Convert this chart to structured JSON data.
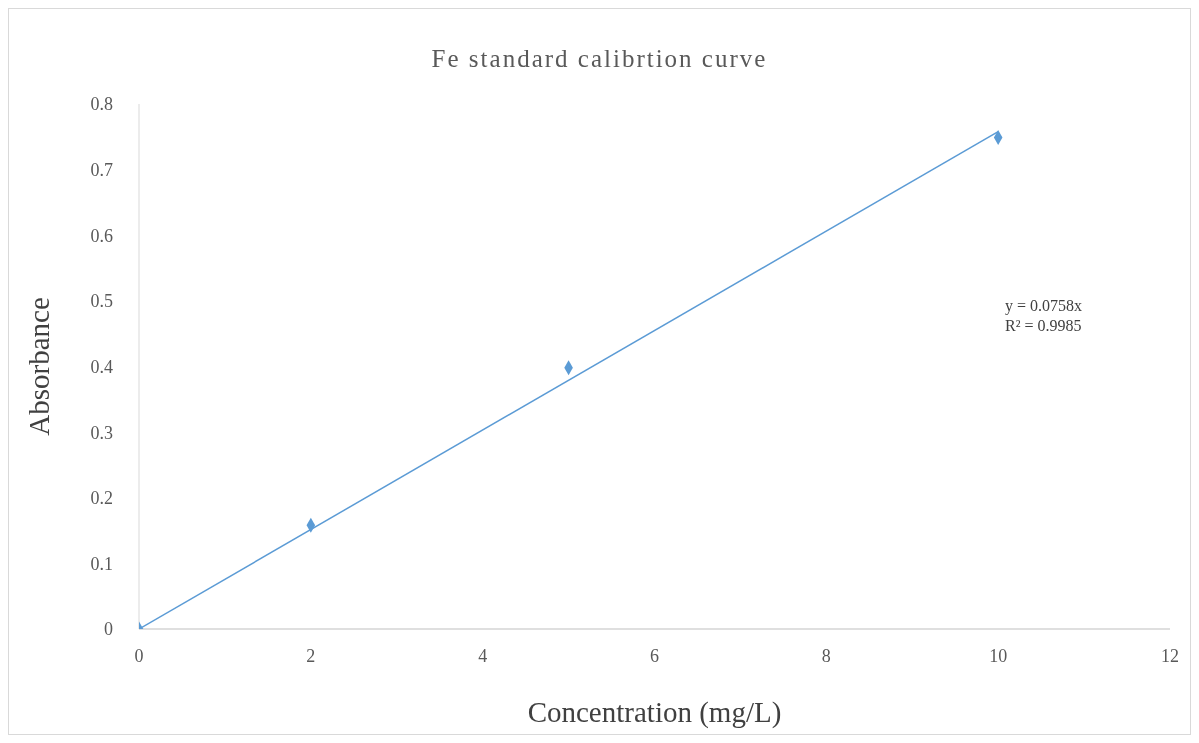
{
  "chart_data": {
    "type": "scatter",
    "title": "Fe standard calibrtion curve",
    "xlabel": "Concentration (mg/L)",
    "ylabel": "Absorbance",
    "x": [
      0,
      2,
      5,
      10
    ],
    "series": [
      {
        "color": "#5b9bd5",
        "values": [
          0,
          0.158,
          0.398,
          0.749
        ],
        "marker": "diamond"
      },
      {
        "type": "line",
        "color": "#5b9bd5",
        "x": [
          0,
          10
        ],
        "values": [
          0,
          0.758
        ],
        "marker": "none",
        "line_style": "solid"
      }
    ],
    "annotations": [
      "y = 0.0758x",
      "R² = 0.9985"
    ],
    "xlim": [
      0,
      12
    ],
    "xticks": [
      0,
      2,
      4,
      6,
      8,
      10,
      12
    ],
    "ylim": [
      0,
      0.8
    ],
    "yticks": [
      0,
      0.1,
      0.2,
      0.3,
      0.4,
      0.5,
      0.6,
      0.7,
      0.8
    ],
    "grid": false
  }
}
